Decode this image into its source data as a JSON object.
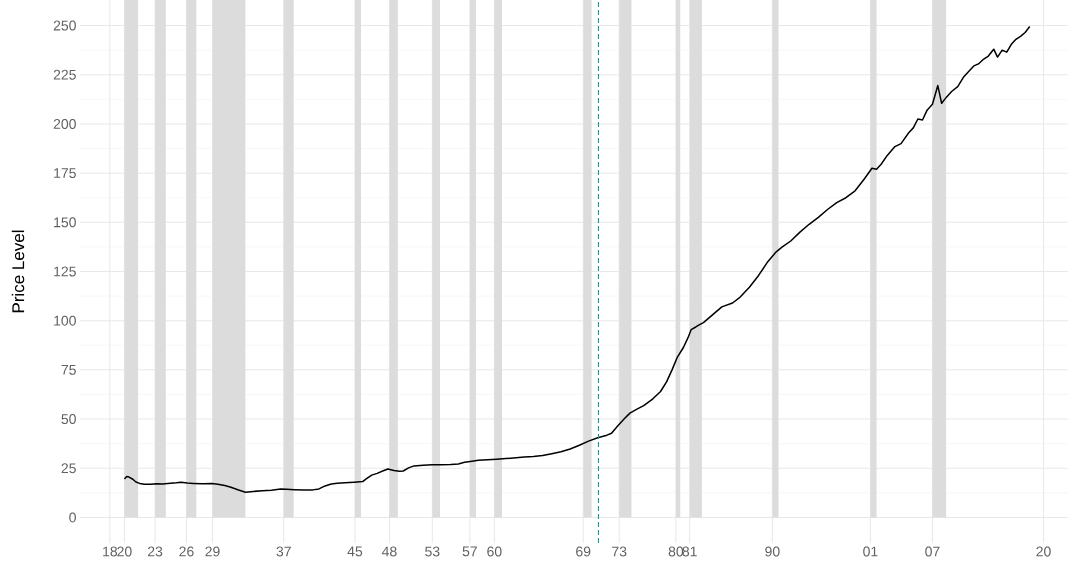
{
  "chart_data": {
    "type": "line",
    "ylabel": "Price Level",
    "series": [
      {
        "color": "#000000",
        "x": [
          "1920-01",
          "1920-04",
          "1920-07",
          "1920-12",
          "1921-04",
          "1921-09",
          "1922-03",
          "1922-11",
          "1923-07",
          "1924-03",
          "1925-01",
          "1925-09",
          "1926-03",
          "1926-11",
          "1927-07",
          "1928-07",
          "1929-07",
          "1930-03",
          "1930-12",
          "1931-08",
          "1932-06",
          "1933-03",
          "1934-01",
          "1935-01",
          "1936-01",
          "1937-01",
          "1937-09",
          "1938-07",
          "1939-07",
          "1940-07",
          "1941-03",
          "1941-11",
          "1942-07",
          "1943-03",
          "1944-01",
          "1945-01",
          "1945-12",
          "1946-06",
          "1946-12",
          "1947-07",
          "1948-03",
          "1948-09",
          "1949-05",
          "1949-12",
          "1950-05",
          "1950-12",
          "1951-07",
          "1952-07",
          "1953-07",
          "1954-07",
          "1955-07",
          "1956-05",
          "1957-01",
          "1957-11",
          "1958-07",
          "1959-07",
          "1960-07",
          "1961-07",
          "1962-07",
          "1963-07",
          "1964-07",
          "1965-07",
          "1966-07",
          "1967-07",
          "1968-07",
          "1969-07",
          "1970-07",
          "1971-07",
          "1972-07",
          "1973-01",
          "1973-09",
          "1974-05",
          "1975-01",
          "1975-09",
          "1976-07",
          "1977-07",
          "1978-05",
          "1979-01",
          "1979-08",
          "1980-03",
          "1980-11",
          "1981-05",
          "1981-09",
          "1982-03",
          "1982-08",
          "1983-01",
          "1984-01",
          "1985-01",
          "1986-03",
          "1987-01",
          "1988-01",
          "1989-01",
          "1990-01",
          "1990-12",
          "1991-08",
          "1992-07",
          "1993-07",
          "1994-07",
          "1995-07",
          "1996-07",
          "1997-07",
          "1998-07",
          "1999-07",
          "2000-07",
          "2001-05",
          "2001-11",
          "2002-05",
          "2003-01",
          "2003-11",
          "2004-07",
          "2005-05",
          "2005-11",
          "2006-05",
          "2006-11",
          "2007-05",
          "2007-12",
          "2008-07",
          "2008-12",
          "2009-06",
          "2010-01",
          "2010-09",
          "2011-05",
          "2011-11",
          "2012-06",
          "2012-12",
          "2013-07",
          "2014-01",
          "2014-08",
          "2015-01",
          "2015-07",
          "2016-01",
          "2016-07",
          "2017-01",
          "2017-07",
          "2018-01",
          "2018-07"
        ],
        "values": [
          19.5,
          20.8,
          20.5,
          19.4,
          18.0,
          17.3,
          16.9,
          16.8,
          17.1,
          17.0,
          17.4,
          17.6,
          17.9,
          17.5,
          17.3,
          17.1,
          17.2,
          16.9,
          16.2,
          15.3,
          13.9,
          12.8,
          13.2,
          13.6,
          13.8,
          14.4,
          14.3,
          14.1,
          13.9,
          14.0,
          14.5,
          16.0,
          17.0,
          17.4,
          17.6,
          17.9,
          18.2,
          20.0,
          21.5,
          22.4,
          23.7,
          24.6,
          23.8,
          23.5,
          23.6,
          25.2,
          26.2,
          26.5,
          26.8,
          26.8,
          26.9,
          27.2,
          28.0,
          28.6,
          29.0,
          29.3,
          29.6,
          29.9,
          30.3,
          30.7,
          31.0,
          31.5,
          32.4,
          33.4,
          34.8,
          36.7,
          38.8,
          40.5,
          41.8,
          42.8,
          46.5,
          49.9,
          53.0,
          54.8,
          56.8,
          60.3,
          64.0,
          69.0,
          75.0,
          81.5,
          86.5,
          91.5,
          95.5,
          96.8,
          98.0,
          99.0,
          103.0,
          107.0,
          109.0,
          112.0,
          117.0,
          123.0,
          130.0,
          135.0,
          137.5,
          140.5,
          145.0,
          149.0,
          152.5,
          156.5,
          160.0,
          162.5,
          166.0,
          172.0,
          177.5,
          177.0,
          179.5,
          184.0,
          188.5,
          190.0,
          195.5,
          198.0,
          202.5,
          202.0,
          207.0,
          210.0,
          219.5,
          210.5,
          213.5,
          216.5,
          219.0,
          224.0,
          226.5,
          229.5,
          230.5,
          233.0,
          234.5,
          238.0,
          234.0,
          237.5,
          236.5,
          240.5,
          243.0,
          244.5,
          246.5,
          249.5
        ]
      }
    ],
    "xlim": [
      "1915-03",
      "2022-09"
    ],
    "ylim": [
      -13,
      263
    ],
    "xticks": [
      {
        "value": "1918-06",
        "label": "18"
      },
      {
        "value": "1920-01",
        "label": "20"
      },
      {
        "value": "1923-05",
        "label": "23"
      },
      {
        "value": "1926-10",
        "label": "26"
      },
      {
        "value": "1929-08",
        "label": "29"
      },
      {
        "value": "1937-05",
        "label": "37"
      },
      {
        "value": "1945-02",
        "label": "45"
      },
      {
        "value": "1948-11",
        "label": "48"
      },
      {
        "value": "1953-07",
        "label": "53"
      },
      {
        "value": "1957-08",
        "label": "57"
      },
      {
        "value": "1960-04",
        "label": "60"
      },
      {
        "value": "1969-12",
        "label": "69"
      },
      {
        "value": "1973-11",
        "label": "73"
      },
      {
        "value": "1980-01",
        "label": "80"
      },
      {
        "value": "1981-07",
        "label": "81"
      },
      {
        "value": "1990-07",
        "label": "90"
      },
      {
        "value": "2001-03",
        "label": "01"
      },
      {
        "value": "2007-12",
        "label": "07"
      },
      {
        "value": "2020-01",
        "label": "20"
      }
    ],
    "yticks": [
      0,
      25,
      50,
      75,
      100,
      125,
      150,
      175,
      200,
      225,
      250
    ],
    "bands": [
      {
        "axis": "x",
        "from": "1920-01",
        "to": "1921-07",
        "color": "#dcdcdc"
      },
      {
        "axis": "x",
        "from": "1923-05",
        "to": "1924-07",
        "color": "#dcdcdc"
      },
      {
        "axis": "x",
        "from": "1926-10",
        "to": "1927-11",
        "color": "#dcdcdc"
      },
      {
        "axis": "x",
        "from": "1929-08",
        "to": "1933-03",
        "color": "#dcdcdc"
      },
      {
        "axis": "x",
        "from": "1937-05",
        "to": "1938-06",
        "color": "#dcdcdc"
      },
      {
        "axis": "x",
        "from": "1945-02",
        "to": "1945-10",
        "color": "#dcdcdc"
      },
      {
        "axis": "x",
        "from": "1948-11",
        "to": "1949-10",
        "color": "#dcdcdc"
      },
      {
        "axis": "x",
        "from": "1953-07",
        "to": "1954-05",
        "color": "#dcdcdc"
      },
      {
        "axis": "x",
        "from": "1957-08",
        "to": "1958-04",
        "color": "#dcdcdc"
      },
      {
        "axis": "x",
        "from": "1960-04",
        "to": "1961-02",
        "color": "#dcdcdc"
      },
      {
        "axis": "x",
        "from": "1969-12",
        "to": "1970-11",
        "color": "#dcdcdc"
      },
      {
        "axis": "x",
        "from": "1973-11",
        "to": "1975-03",
        "color": "#dcdcdc"
      },
      {
        "axis": "x",
        "from": "1980-01",
        "to": "1980-07",
        "color": "#dcdcdc"
      },
      {
        "axis": "x",
        "from": "1981-07",
        "to": "1982-11",
        "color": "#dcdcdc"
      },
      {
        "axis": "x",
        "from": "1990-07",
        "to": "1991-03",
        "color": "#dcdcdc"
      },
      {
        "axis": "x",
        "from": "2001-03",
        "to": "2001-11",
        "color": "#dcdcdc"
      },
      {
        "axis": "x",
        "from": "2007-12",
        "to": "2009-06",
        "color": "#dcdcdc"
      }
    ],
    "ref_lines": [
      {
        "axis": "x",
        "value": "1971-08",
        "color": "#1a9a8a",
        "line_style": "dashed"
      }
    ],
    "grid": true,
    "line_style": "solid",
    "marker": "none"
  }
}
